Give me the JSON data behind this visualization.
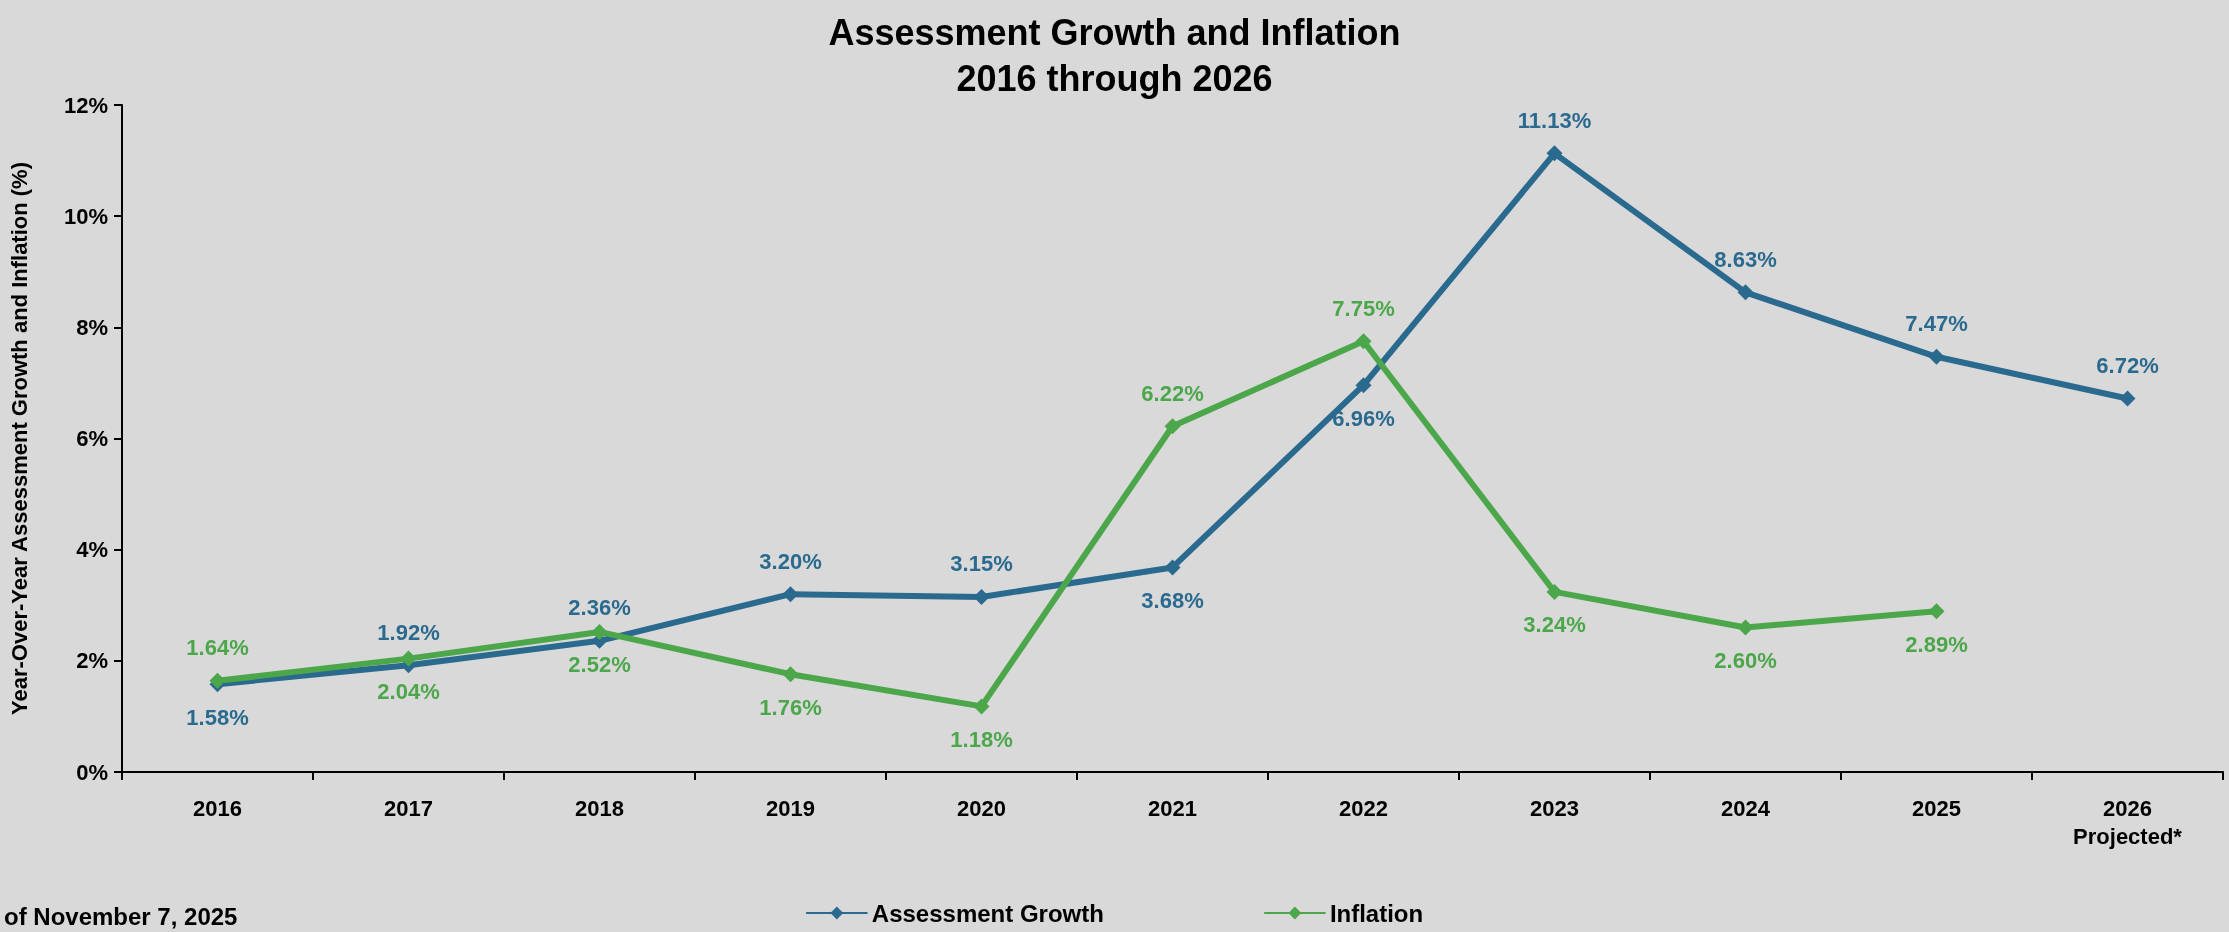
{
  "chart_data": {
    "type": "line",
    "title": "Assessment Growth and Inflation\n2016 through 2026",
    "ylabel": "Year-Over-Year Assessment Growth and Inflation (%)",
    "categories": [
      "2016",
      "2017",
      "2018",
      "2019",
      "2020",
      "2021",
      "2022",
      "2023",
      "2024",
      "2025",
      "2026\nProjected*"
    ],
    "series": [
      {
        "name": "Assessment Growth",
        "color": "#2b6a8f",
        "values": [
          1.58,
          1.92,
          2.36,
          3.2,
          3.15,
          3.68,
          6.96,
          11.13,
          8.63,
          7.47,
          6.72
        ],
        "value_labels": [
          "1.58%",
          "1.92%",
          "2.36%",
          "3.20%",
          "3.15%",
          "3.68%",
          "6.96%",
          "11.13%",
          "8.63%",
          "7.47%",
          "6.72%"
        ]
      },
      {
        "name": "Inflation",
        "color": "#4ca64a",
        "values": [
          1.64,
          2.04,
          2.52,
          1.76,
          1.18,
          6.22,
          7.75,
          3.24,
          2.6,
          2.89,
          null
        ],
        "value_labels": [
          "1.64%",
          "2.04%",
          "2.52%",
          "1.76%",
          "1.18%",
          "6.22%",
          "7.75%",
          "3.24%",
          "2.60%",
          "2.89%",
          null
        ]
      }
    ],
    "ylim": [
      0,
      12
    ],
    "yticks": [
      {
        "value": 0,
        "label": "0%"
      },
      {
        "value": 2,
        "label": "2%"
      },
      {
        "value": 4,
        "label": "4%"
      },
      {
        "value": 6,
        "label": "6%"
      },
      {
        "value": 8,
        "label": "8%"
      },
      {
        "value": 10,
        "label": "10%"
      },
      {
        "value": 12,
        "label": "12%"
      }
    ],
    "grid": false,
    "legend": "bottom",
    "marker": "diamond",
    "line_style": "solid",
    "annotations": [
      "of November 7, 2025"
    ]
  }
}
